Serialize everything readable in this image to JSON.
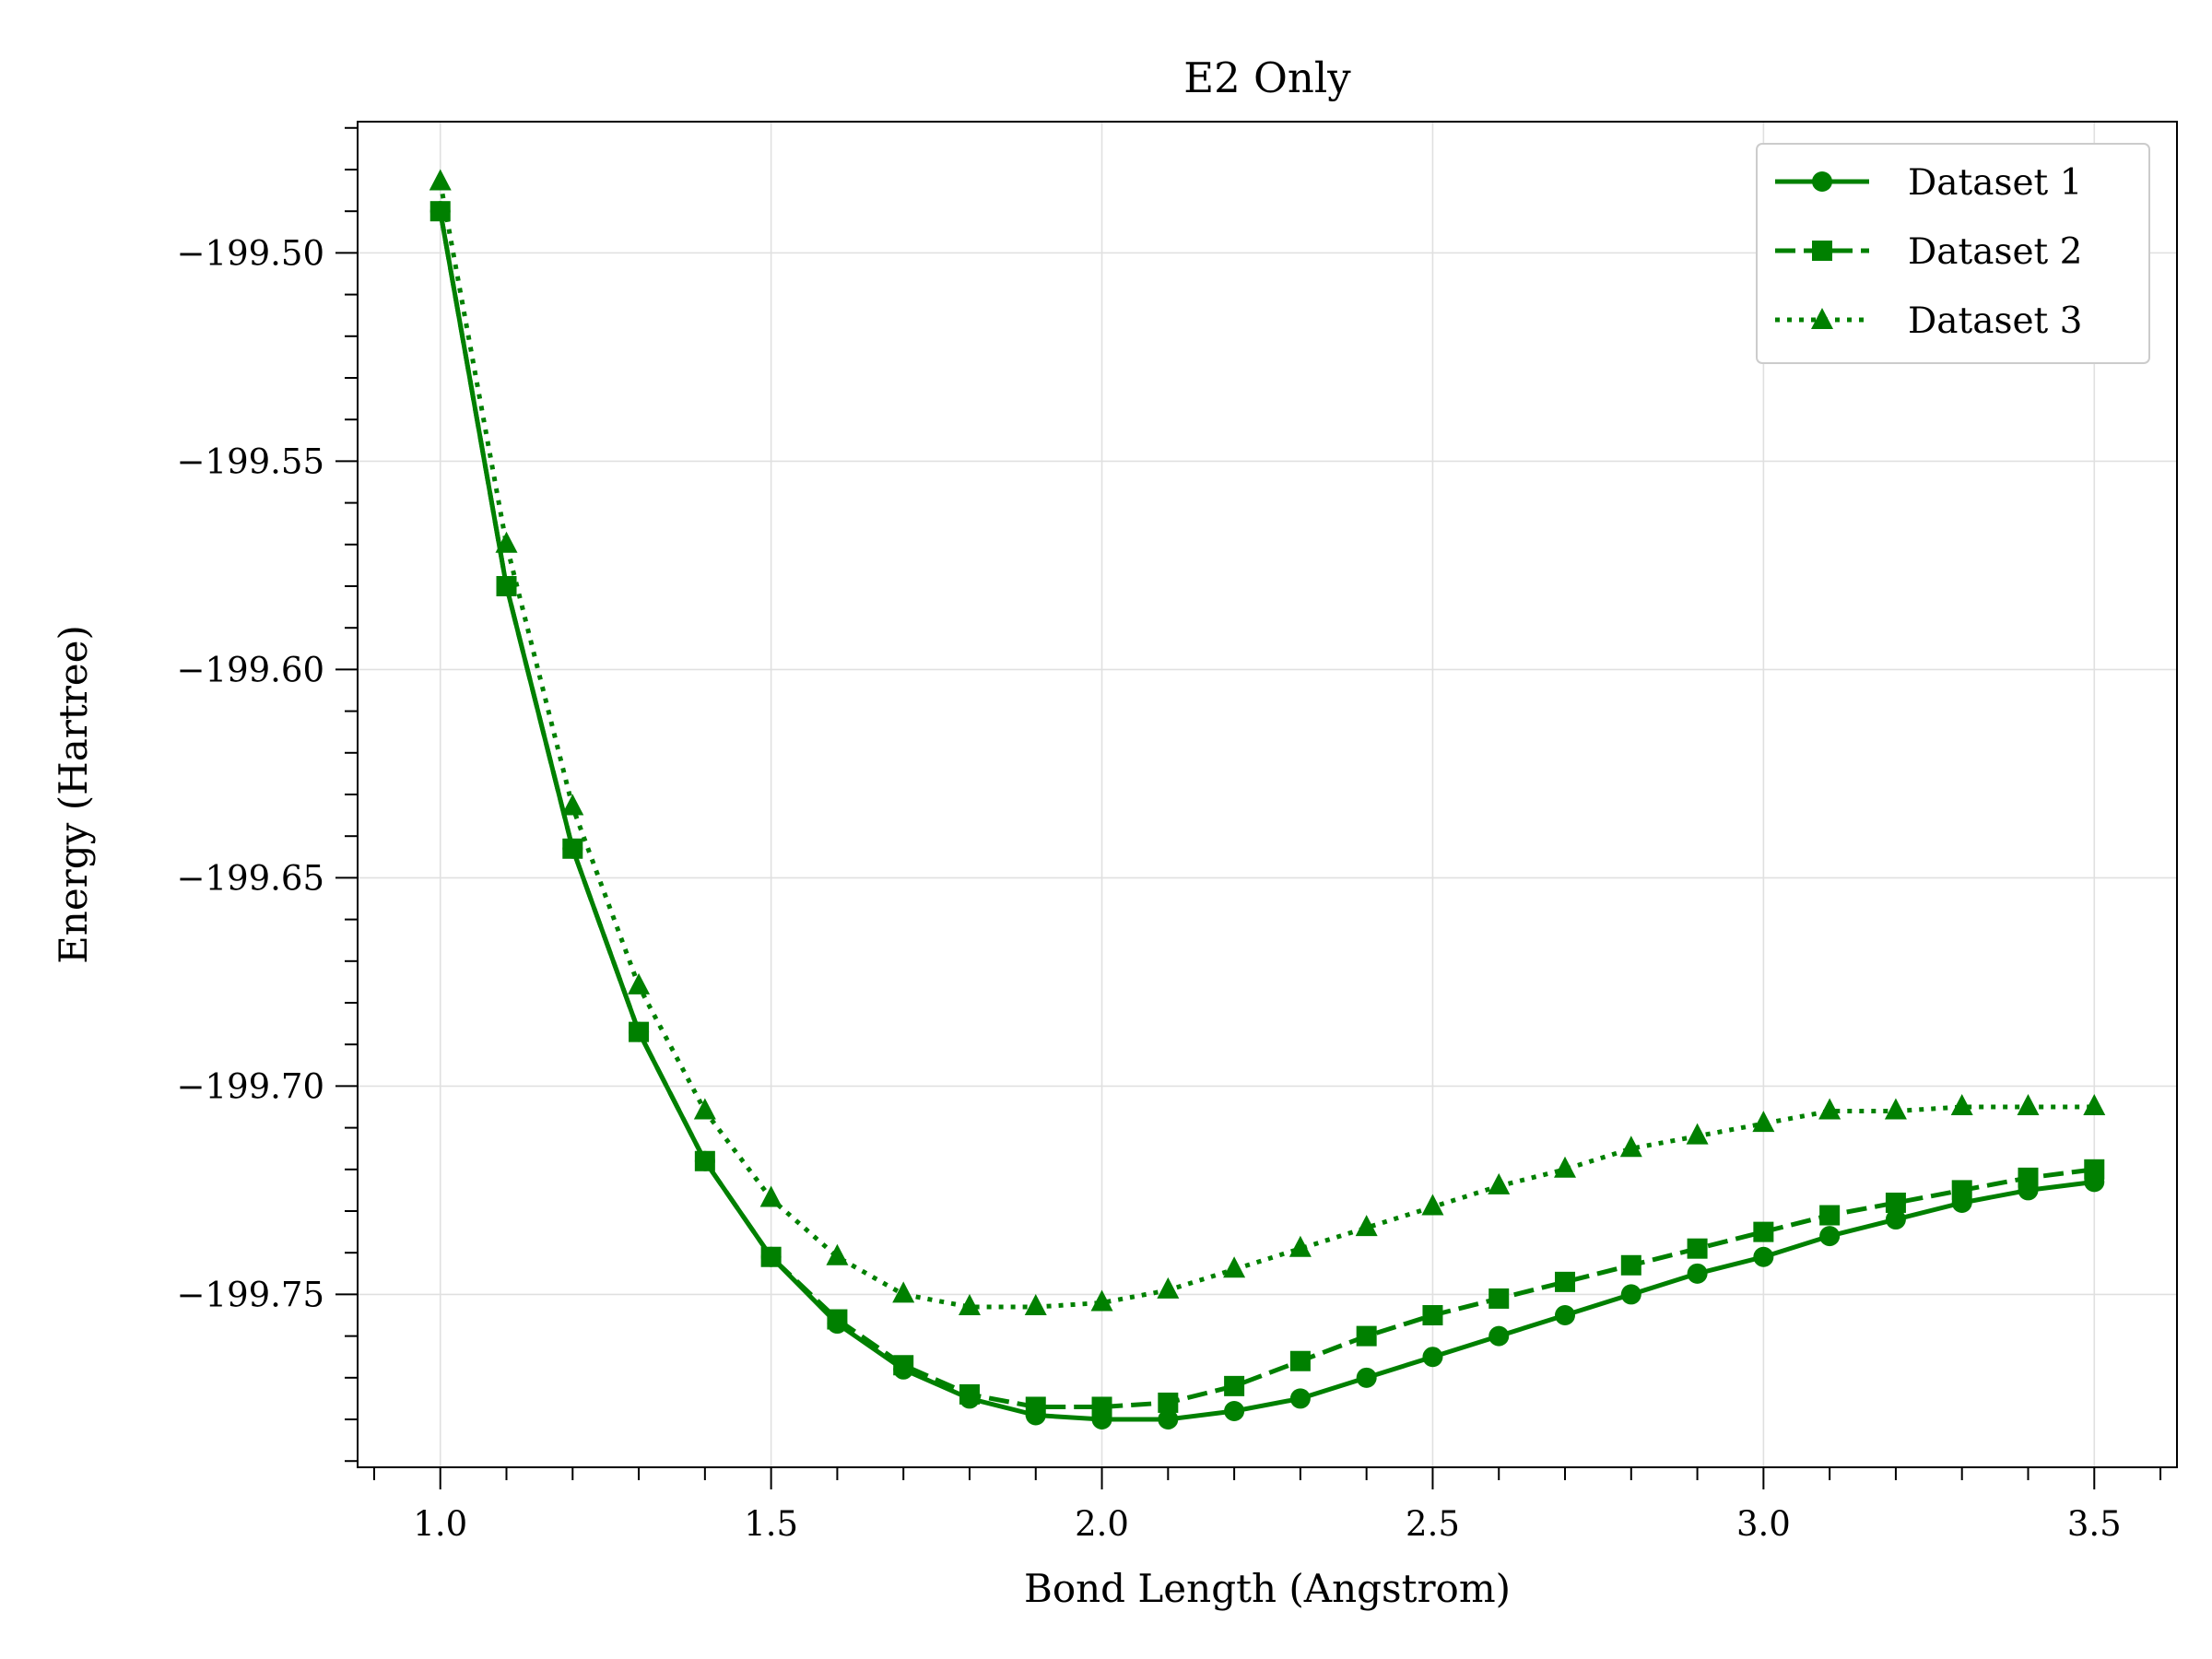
{
  "chart_data": {
    "type": "line",
    "title": "E2 Only",
    "xlabel": "Bond Length (Angstrom)",
    "ylabel": "Energy (Hartree)",
    "xlim": [
      0.875,
      3.625
    ],
    "ylim": [
      -199.7915,
      -199.4685
    ],
    "xticks": [
      1.0,
      1.5,
      2.0,
      2.5,
      3.0,
      3.5
    ],
    "xtick_labels": [
      "1.0",
      "1.5",
      "2.0",
      "2.5",
      "3.0",
      "3.5"
    ],
    "yticks": [
      -199.75,
      -199.7,
      -199.65,
      -199.6,
      -199.55,
      -199.5
    ],
    "ytick_labels": [
      "−199.75",
      "−199.70",
      "−199.65",
      "−199.60",
      "−199.55",
      "−199.50"
    ],
    "grid": true,
    "legend_position": "top-right",
    "color": "#008000",
    "x": [
      1.0,
      1.1,
      1.2,
      1.3,
      1.4,
      1.5,
      1.6,
      1.7,
      1.8,
      1.9,
      2.0,
      2.1,
      2.2,
      2.3,
      2.4,
      2.5,
      2.6,
      2.7,
      2.8,
      2.9,
      3.0,
      3.1,
      3.2,
      3.3,
      3.4,
      3.5
    ],
    "series": [
      {
        "name": "Dataset 1",
        "marker": "circle",
        "linestyle": "solid",
        "values": [
          -199.49,
          -199.58,
          -199.643,
          -199.687,
          -199.718,
          -199.741,
          -199.757,
          -199.768,
          -199.775,
          -199.779,
          -199.78,
          -199.78,
          -199.778,
          -199.775,
          -199.77,
          -199.765,
          -199.76,
          -199.755,
          -199.75,
          -199.745,
          -199.741,
          -199.736,
          -199.732,
          -199.728,
          -199.725,
          -199.723
        ]
      },
      {
        "name": "Dataset 2",
        "marker": "square",
        "linestyle": "dashed",
        "values": [
          -199.49,
          -199.58,
          -199.643,
          -199.687,
          -199.718,
          -199.741,
          -199.756,
          -199.767,
          -199.774,
          -199.777,
          -199.777,
          -199.776,
          -199.772,
          -199.766,
          -199.76,
          -199.755,
          -199.751,
          -199.747,
          -199.743,
          -199.739,
          -199.735,
          -199.731,
          -199.728,
          -199.725,
          -199.722,
          -199.72
        ]
      },
      {
        "name": "Dataset 3",
        "marker": "triangle",
        "linestyle": "dotted",
        "values": [
          -199.483,
          -199.57,
          -199.633,
          -199.676,
          -199.706,
          -199.727,
          -199.741,
          -199.75,
          -199.753,
          -199.753,
          -199.752,
          -199.749,
          -199.744,
          -199.739,
          -199.734,
          -199.729,
          -199.724,
          -199.72,
          -199.715,
          -199.712,
          -199.709,
          -199.706,
          -199.706,
          -199.705,
          -199.705,
          -199.705
        ]
      }
    ]
  }
}
